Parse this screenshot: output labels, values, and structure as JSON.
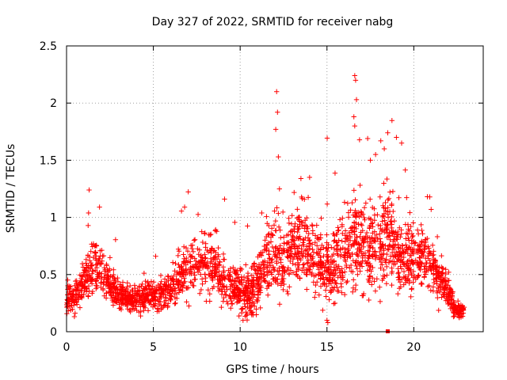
{
  "chart_data": {
    "type": "scatter",
    "title": "Day 327 of 2022, SRMTID for receiver nabg",
    "xlabel": "GPS time / hours",
    "ylabel": "SRMTID / TECUs",
    "xlim": [
      0,
      24
    ],
    "ylim": [
      0,
      2.5
    ],
    "xticks": [
      0,
      5,
      10,
      15,
      20
    ],
    "yticks": [
      0,
      0.5,
      1,
      1.5,
      2,
      2.5
    ],
    "xtick_labels": [
      "0",
      "5",
      "10",
      "15",
      "20"
    ],
    "ytick_labels": [
      "0",
      "0.5",
      "1",
      "1.5",
      "2",
      "2.5"
    ],
    "grid": true,
    "marker": "+",
    "series_color": "#ff0000",
    "series": [
      {
        "name": "SRMTID",
        "profile_x": [
          0,
          0.3,
          0.7,
          1.0,
          1.4,
          1.7,
          2.0,
          2.3,
          2.7,
          3.0,
          3.5,
          4.0,
          4.5,
          5.0,
          5.5,
          6.0,
          6.5,
          7.0,
          7.5,
          8.0,
          8.5,
          9.0,
          9.5,
          10.0,
          10.5,
          11.0,
          11.5,
          12.0,
          12.5,
          13.0,
          13.5,
          14.0,
          14.5,
          15.0,
          15.5,
          16.0,
          16.5,
          17.0,
          17.5,
          18.0,
          18.5,
          19.0,
          19.5,
          20.0,
          20.5,
          21.0,
          21.5,
          22.0,
          22.3,
          22.6,
          22.9
        ],
        "profile_y": [
          0.3,
          0.28,
          0.35,
          0.45,
          0.55,
          0.62,
          0.55,
          0.45,
          0.4,
          0.32,
          0.28,
          0.28,
          0.3,
          0.32,
          0.33,
          0.4,
          0.5,
          0.55,
          0.55,
          0.6,
          0.6,
          0.45,
          0.42,
          0.35,
          0.32,
          0.45,
          0.6,
          0.65,
          0.62,
          0.75,
          0.8,
          0.7,
          0.6,
          0.55,
          0.6,
          0.7,
          0.8,
          0.75,
          0.7,
          0.75,
          0.85,
          0.7,
          0.65,
          0.7,
          0.65,
          0.6,
          0.45,
          0.35,
          0.2,
          0.18,
          0.18
        ],
        "spread": [
          0.1,
          0.1,
          0.12,
          0.15,
          0.2,
          0.22,
          0.18,
          0.14,
          0.12,
          0.1,
          0.09,
          0.09,
          0.1,
          0.1,
          0.11,
          0.15,
          0.2,
          0.22,
          0.22,
          0.22,
          0.24,
          0.18,
          0.16,
          0.14,
          0.15,
          0.2,
          0.25,
          0.28,
          0.25,
          0.28,
          0.3,
          0.28,
          0.25,
          0.25,
          0.28,
          0.3,
          0.35,
          0.33,
          0.3,
          0.32,
          0.35,
          0.28,
          0.24,
          0.24,
          0.22,
          0.2,
          0.15,
          0.12,
          0.07,
          0.05,
          0.04
        ],
        "peaks": [
          [
            1.3,
            1.24
          ],
          [
            1.9,
            1.09
          ],
          [
            6.8,
            1.09
          ],
          [
            9.1,
            1.16
          ],
          [
            12.1,
            2.1
          ],
          [
            12.15,
            1.92
          ],
          [
            12.05,
            1.77
          ],
          [
            12.2,
            1.53
          ],
          [
            13.5,
            1.34
          ],
          [
            14.0,
            1.35
          ],
          [
            16.6,
            2.24
          ],
          [
            16.65,
            2.2
          ],
          [
            16.7,
            2.03
          ],
          [
            16.55,
            1.88
          ],
          [
            16.6,
            1.8
          ],
          [
            17.5,
            1.5
          ],
          [
            17.8,
            1.55
          ],
          [
            18.1,
            1.67
          ],
          [
            18.3,
            1.6
          ],
          [
            18.5,
            1.74
          ],
          [
            19.0,
            1.7
          ],
          [
            19.3,
            1.65
          ],
          [
            21.0,
            1.07
          ],
          [
            15.0,
            0.1
          ],
          [
            15.05,
            0.08
          ]
        ],
        "dense_pairs": 2600
      }
    ],
    "annotations": [
      {
        "x": 18.5,
        "y": 0.0,
        "marker": "square"
      }
    ]
  }
}
